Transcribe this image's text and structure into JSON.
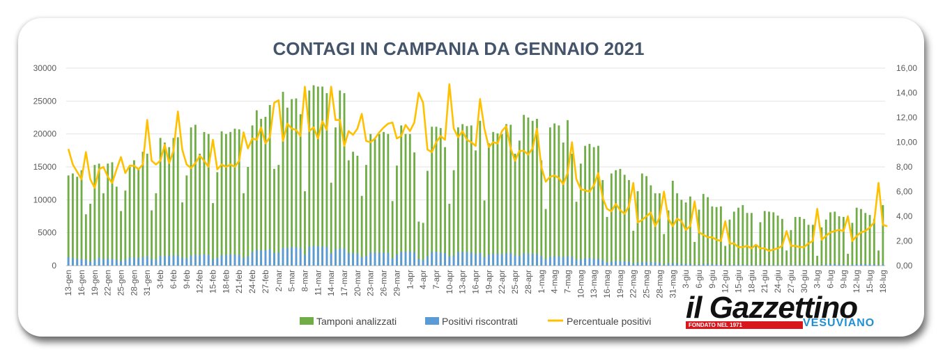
{
  "chart_data": {
    "type": "bar",
    "title": "CONTAGI IN CAMPANIA DA GENNAIO 2021",
    "y_left": {
      "ticks": [
        "0",
        "5000",
        "10000",
        "15000",
        "20000",
        "25000",
        "30000"
      ],
      "range": [
        0,
        30000
      ]
    },
    "y_right": {
      "ticks": [
        "0,00",
        "2,00",
        "4,00",
        "6,00",
        "8,00",
        "10,00",
        "12,00",
        "14,00",
        "16,00"
      ],
      "range": [
        0,
        16
      ]
    },
    "x_tick_labels": [
      "13-gen",
      "16-gen",
      "19-gen",
      "22-gen",
      "25-gen",
      "28-gen",
      "31-gen",
      "3-feb",
      "6-feb",
      "9-feb",
      "12-feb",
      "15-feb",
      "18-feb",
      "21-feb",
      "24-feb",
      "27-feb",
      "2-mar",
      "5-mar",
      "8-mar",
      "11-mar",
      "14-mar",
      "17-mar",
      "20-mar",
      "23-mar",
      "26-mar",
      "29-mar",
      "1-apr",
      "4-apr",
      "7-apr",
      "10-apr",
      "13-apr",
      "16-apr",
      "19-apr",
      "22-apr",
      "25-apr",
      "28-apr",
      "1-mag",
      "4-mag",
      "7-mag",
      "10-mag",
      "13-mag",
      "16-mag",
      "19-mag",
      "22-mag",
      "25-mag",
      "28-mag",
      "31-mag",
      "3-giu",
      "6-giu",
      "9-giu",
      "12-giu",
      "15-giu",
      "18-giu",
      "21-giu",
      "24-giu",
      "27-giu",
      "30-giu",
      "3-lug",
      "6-lug",
      "9-lug",
      "12-lug",
      "15-lug",
      "18-lug"
    ],
    "legend": [
      "Tamponi analizzati",
      "Positivi riscontrati",
      "Percentuale positivi"
    ],
    "legend_position": "bottom",
    "grid": true,
    "colors": {
      "tamponi": "#70ad47",
      "positivi": "#5b9bd5",
      "percentuale": "#ffc000"
    },
    "series": [
      {
        "name": "Tamponi analizzati",
        "axis": "left",
        "type": "bar",
        "values": [
          13700,
          14000,
          13500,
          14500,
          7800,
          9400,
          15300,
          15500,
          11000,
          15500,
          15700,
          12000,
          8300,
          11400,
          15000,
          16000,
          14700,
          17300,
          17000,
          8400,
          11000,
          19400,
          18700,
          18000,
          19400,
          19500,
          9600,
          13700,
          21000,
          21400,
          17000,
          20300,
          20000,
          9500,
          14200,
          20400,
          20000,
          20300,
          20800,
          20700,
          11000,
          15000,
          21300,
          23600,
          22300,
          22600,
          24400,
          14700,
          15300,
          26400,
          24000,
          25300,
          25400,
          23000,
          11300,
          26600,
          27400,
          27200,
          27200,
          26200,
          12600,
          21000,
          26600,
          26200,
          16000,
          17300,
          16700,
          10600,
          15300,
          20000,
          19400,
          20000,
          20300,
          20000,
          9800,
          15200,
          21300,
          20000,
          20000,
          17200,
          6700,
          6500,
          14400,
          21100,
          21100,
          20900,
          18000,
          9400,
          14500,
          21000,
          21500,
          21200,
          21300,
          17500,
          22000,
          9900,
          18600,
          20300,
          20100,
          20000,
          21500,
          21400,
          17000,
          19000,
          22900,
          22500,
          22000,
          22300,
          16000,
          8600,
          21000,
          21600,
          21300,
          18700,
          22100,
          17000,
          9700,
          15500,
          18200,
          18500,
          18000,
          18200,
          13000,
          7400,
          14000,
          14500,
          14700,
          13800,
          13000,
          5300,
          11300,
          14000,
          13600,
          12200,
          11000,
          11000,
          4800,
          8400,
          12900,
          11000,
          10000,
          9600,
          10500,
          3600,
          8500,
          10900,
          10400,
          9000,
          8900,
          9000,
          3000,
          7000,
          8200,
          8800,
          9200,
          8000,
          8000,
          3000,
          6600,
          8300,
          8200,
          8100,
          7600,
          7100,
          2300,
          5400,
          7400,
          7400,
          7100,
          6200,
          6200,
          1500,
          5800,
          7000,
          8100,
          8200,
          7500,
          7400,
          1800,
          6500,
          8800,
          8600,
          8000,
          7700,
          7100,
          2300,
          9200
        ]
      },
      {
        "name": "Positivi riscontrati",
        "axis": "left",
        "type": "bar",
        "values": [
          1300,
          1150,
          1000,
          1000,
          900,
          650,
          900,
          1200,
          1000,
          1100,
          1050,
          900,
          700,
          900,
          1200,
          1250,
          1150,
          1300,
          1400,
          1000,
          900,
          1500,
          1450,
          1550,
          1550,
          1600,
          1200,
          1100,
          1550,
          1650,
          1600,
          1700,
          1600,
          1000,
          1200,
          1600,
          1600,
          1700,
          1650,
          1650,
          1200,
          1400,
          2100,
          2400,
          2300,
          2350,
          2500,
          1900,
          2000,
          2650,
          2700,
          2800,
          2800,
          2600,
          1650,
          2900,
          3000,
          2950,
          2900,
          2900,
          1900,
          2450,
          2600,
          2600,
          1950,
          1850,
          1800,
          1300,
          1500,
          2000,
          2000,
          2000,
          2000,
          1900,
          1100,
          1700,
          2100,
          2100,
          2200,
          2000,
          1000,
          850,
          1400,
          2100,
          2100,
          2000,
          1900,
          1400,
          1600,
          2100,
          2100,
          2050,
          2000,
          1750,
          1900,
          1300,
          1700,
          1800,
          1800,
          1700,
          1850,
          1950,
          1550,
          1500,
          1850,
          1800,
          1800,
          1750,
          1450,
          950,
          1350,
          1450,
          1400,
          1350,
          1400,
          1350,
          900,
          950,
          1150,
          1150,
          1100,
          1050,
          800,
          500,
          600,
          700,
          650,
          650,
          600,
          300,
          400,
          550,
          550,
          550,
          500,
          450,
          150,
          350,
          400,
          300,
          300,
          250,
          300,
          100,
          200,
          250,
          250,
          200,
          200,
          200,
          80,
          120,
          150,
          150,
          140,
          120,
          120,
          60,
          120,
          120,
          110,
          100,
          100,
          100,
          40,
          80,
          100,
          100,
          100,
          100,
          100,
          30,
          120,
          150,
          200,
          230,
          200,
          150,
          40,
          150,
          210,
          220,
          200,
          220,
          230,
          70,
          200
        ]
      },
      {
        "name": "Percentuale positivi",
        "axis": "right",
        "type": "line",
        "values": [
          9.45,
          8.2,
          7.6,
          7.0,
          9.2,
          7.0,
          6.3,
          7.8,
          8.0,
          7.2,
          6.7,
          7.8,
          8.8,
          7.5,
          8.1,
          8.1,
          7.8,
          8.2,
          11.8,
          8.5,
          8.2,
          8.5,
          9.8,
          8.3,
          9.3,
          12.5,
          9.4,
          8.2,
          7.9,
          8.3,
          8.9,
          8.5,
          8.0,
          10.2,
          7.8,
          8.2,
          8.0,
          8.2,
          8.0,
          8.5,
          10.8,
          9.5,
          10.3,
          10.2,
          11.2,
          9.9,
          10.4,
          13.2,
          13.4,
          10.1,
          11.5,
          11.1,
          11.0,
          10.5,
          14.5,
          10.9,
          11.2,
          10.3,
          11.7,
          11.0,
          14.5,
          11.8,
          11.8,
          9.7,
          10.9,
          10.6,
          11.1,
          12.3,
          10.1,
          10.0,
          10.3,
          10.8,
          11.2,
          11.5,
          11.6,
          10.3,
          10.5,
          11.4,
          10.9,
          11.6,
          14.0,
          13.2,
          9.4,
          9.2,
          10.0,
          10.5,
          10.2,
          14.7,
          11.1,
          10.4,
          10.9,
          10.2,
          10.0,
          9.7,
          13.5,
          11.1,
          9.6,
          10.0,
          9.9,
          10.9,
          11.3,
          9.5,
          8.5,
          9.3,
          9.3,
          9.0,
          9.5,
          11.1,
          8.0,
          6.8,
          7.2,
          7.3,
          7.1,
          6.6,
          7.5,
          10.0,
          7.0,
          6.2,
          6.1,
          6.0,
          6.5,
          7.5,
          5.5,
          4.6,
          4.4,
          5.0,
          4.5,
          4.2,
          4.8,
          6.7,
          3.5,
          3.7,
          4.0,
          4.3,
          3.2,
          3.9,
          6.0,
          3.8,
          3.2,
          3.8,
          3.6,
          2.9,
          3.2,
          5.2,
          2.7,
          2.5,
          2.3,
          2.3,
          2.1,
          2.0,
          3.6,
          1.8,
          1.8,
          1.5,
          1.5,
          1.6,
          1.4,
          1.7,
          1.4,
          1.4,
          1.2,
          1.3,
          1.4,
          1.6,
          2.8,
          1.6,
          1.6,
          1.5,
          1.5,
          1.8,
          2.0,
          4.6,
          2.1,
          2.4,
          2.7,
          2.8,
          2.9,
          2.8,
          4.0,
          2.0,
          2.4,
          2.7,
          2.8,
          3.1,
          3.5,
          6.7,
          3.3,
          3.2
        ]
      }
    ]
  },
  "branding": {
    "logo_main": "il Gazzettino",
    "logo_sub": "VESUVIANO",
    "logo_tagline": "FONDATO NEL 1971"
  }
}
